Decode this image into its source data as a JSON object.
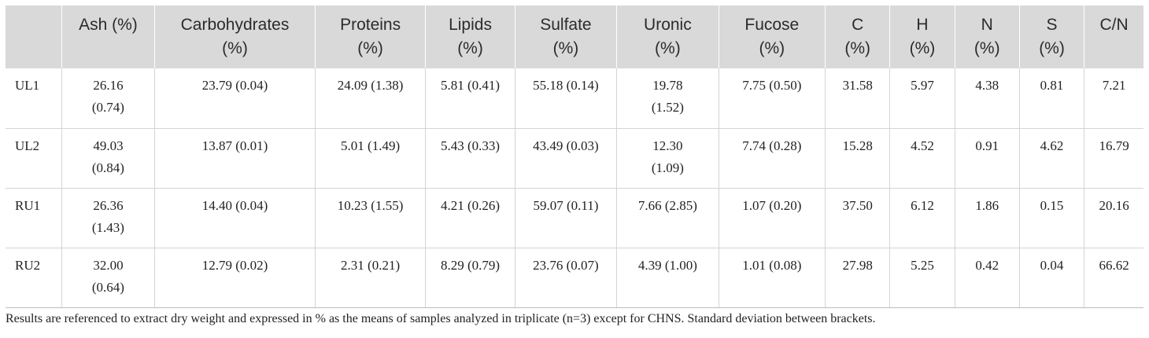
{
  "table": {
    "headers": [
      {
        "line1": "",
        "line2": ""
      },
      {
        "line1": "Ash (%)",
        "line2": ""
      },
      {
        "line1": "Carbohydrates",
        "line2": "(%)"
      },
      {
        "line1": "Proteins",
        "line2": "(%)"
      },
      {
        "line1": "Lipids",
        "line2": "(%)"
      },
      {
        "line1": "Sulfate",
        "line2": "(%)"
      },
      {
        "line1": "Uronic",
        "line2": "(%)"
      },
      {
        "line1": "Fucose",
        "line2": "(%)"
      },
      {
        "line1": "C",
        "line2": "(%)"
      },
      {
        "line1": "H",
        "line2": "(%)"
      },
      {
        "line1": "N",
        "line2": "(%)"
      },
      {
        "line1": "S",
        "line2": "(%)"
      },
      {
        "line1": "C/N",
        "line2": ""
      }
    ],
    "rows": [
      {
        "sample": "UL1",
        "ash": {
          "line1": "26.16",
          "line2": "(0.74)"
        },
        "carbohydrates": "23.79 (0.04)",
        "proteins": "24.09 (1.38)",
        "lipids": "5.81 (0.41)",
        "sulfate": "55.18 (0.14)",
        "uronic": {
          "line1": "19.78",
          "line2": "(1.52)"
        },
        "fucose": "7.75 (0.50)",
        "c": "31.58",
        "h": "5.97",
        "n": "4.38",
        "s": "0.81",
        "cn": "7.21"
      },
      {
        "sample": "UL2",
        "ash": {
          "line1": "49.03",
          "line2": "(0.84)"
        },
        "carbohydrates": "13.87 (0.01)",
        "proteins": "5.01 (1.49)",
        "lipids": "5.43 (0.33)",
        "sulfate": "43.49 (0.03)",
        "uronic": {
          "line1": "12.30",
          "line2": "(1.09)"
        },
        "fucose": "7.74 (0.28)",
        "c": "15.28",
        "h": "4.52",
        "n": "0.91",
        "s": "4.62",
        "cn": "16.79"
      },
      {
        "sample": "RU1",
        "ash": {
          "line1": "26.36",
          "line2": "(1.43)"
        },
        "carbohydrates": "14.40 (0.04)",
        "proteins": "10.23 (1.55)",
        "lipids": "4.21 (0.26)",
        "sulfate": "59.07 (0.11)",
        "uronic": {
          "line1": "7.66 (2.85)",
          "line2": ""
        },
        "fucose": "1.07 (0.20)",
        "c": "37.50",
        "h": "6.12",
        "n": "1.86",
        "s": "0.15",
        "cn": "20.16"
      },
      {
        "sample": "RU2",
        "ash": {
          "line1": "32.00",
          "line2": "(0.64)"
        },
        "carbohydrates": "12.79 (0.02)",
        "proteins": "2.31 (0.21)",
        "lipids": "8.29 (0.79)",
        "sulfate": "23.76 (0.07)",
        "uronic": {
          "line1": "4.39 (1.00)",
          "line2": ""
        },
        "fucose": "1.01 (0.08)",
        "c": "27.98",
        "h": "5.25",
        "n": "0.42",
        "s": "0.04",
        "cn": "66.62"
      }
    ]
  },
  "footnote": "Results are referenced to extract dry weight and expressed in % as the means of samples analyzed in triplicate (n=3) except for CHNS. Standard deviation between brackets.",
  "colors": {
    "header_bg": "#d9d9d9",
    "grid": "#d4d4d4",
    "text": "#222222"
  }
}
